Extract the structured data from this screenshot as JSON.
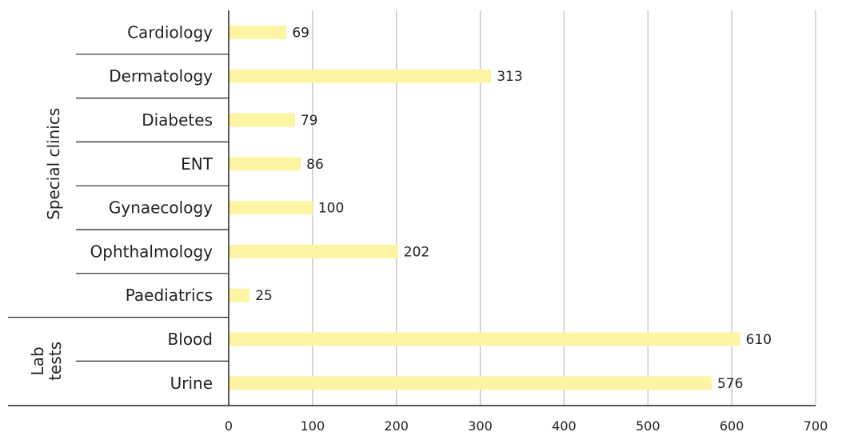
{
  "chart_data": {
    "type": "bar",
    "orientation": "horizontal",
    "title": "",
    "xlabel": "",
    "ylabel": "",
    "xlim": [
      0,
      700
    ],
    "xticks": [
      0,
      100,
      200,
      300,
      400,
      500,
      600,
      700
    ],
    "grid": true,
    "bar_color": "#fdf4a4",
    "groups": [
      {
        "name": "Special clinics",
        "categories": [
          "Cardiology",
          "Dermatology",
          "Diabetes",
          "ENT",
          "Gynaecology",
          "Ophthalmology",
          "Paediatrics"
        ],
        "values": [
          69,
          313,
          79,
          86,
          100,
          202,
          25
        ]
      },
      {
        "name": "Lab tests",
        "categories": [
          "Blood",
          "Urine"
        ],
        "values": [
          610,
          576
        ]
      }
    ]
  }
}
